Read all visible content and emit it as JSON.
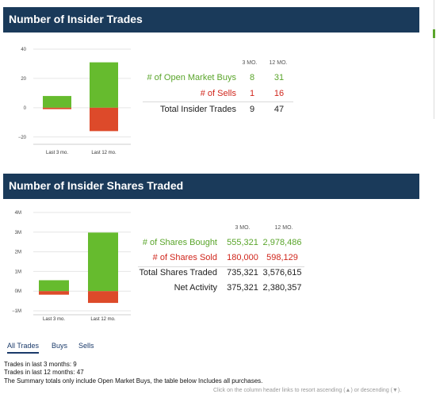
{
  "trades_panel": {
    "title": "Number of Insider Trades",
    "col_3mo": "3 MO.",
    "col_12mo": "12 MO.",
    "rows": [
      {
        "label": "# of Open Market Buys",
        "v3": "8",
        "v12": "31",
        "color": "#5aa52b"
      },
      {
        "label": "# of Sells",
        "v3": "1",
        "v12": "16",
        "color": "#d0261c"
      },
      {
        "label": "Total Insider Trades",
        "v3": "9",
        "v12": "47",
        "color": "#222222"
      }
    ]
  },
  "shares_panel": {
    "title": "Number of Insider Shares Traded",
    "col_3mo": "3 MO.",
    "col_12mo": "12 MO.",
    "rows": [
      {
        "label": "# of Shares Bought",
        "v3": "555,321",
        "v12": "2,978,486",
        "color": "#5aa52b"
      },
      {
        "label": "# of Shares Sold",
        "v3": "180,000",
        "v12": "598,129",
        "color": "#d0261c"
      },
      {
        "label": "Total Shares Traded",
        "v3": "735,321",
        "v12": "3,576,615",
        "color": "#222222"
      },
      {
        "label": "Net Activity",
        "v3": "375,321",
        "v12": "2,380,357",
        "color": "#222222"
      }
    ]
  },
  "chart_data": [
    {
      "type": "bar",
      "categories": [
        "Last 3 mo.",
        "Last 12 mo."
      ],
      "series": [
        {
          "values": [
            8,
            31
          ],
          "color": "#66bb2e"
        },
        {
          "values": [
            -1,
            -16
          ],
          "color": "#dd4a2a"
        }
      ],
      "yticks": [
        40,
        20,
        0,
        -20
      ],
      "ytick_labels": [
        "40",
        "20",
        "0",
        "−20"
      ],
      "ylim": [
        -25,
        40
      ]
    },
    {
      "type": "bar",
      "categories": [
        "Last 3 mo.",
        "Last 12 mo."
      ],
      "series": [
        {
          "values": [
            555321,
            2978486
          ],
          "color": "#66bb2e"
        },
        {
          "values": [
            -180000,
            -598129
          ],
          "color": "#dd4a2a"
        }
      ],
      "yticks": [
        4000000,
        3000000,
        2000000,
        1000000,
        0,
        -1000000
      ],
      "ytick_labels": [
        "4M",
        "3M",
        "2M",
        "1M",
        "0M",
        "−1M"
      ],
      "ylim": [
        -1200000,
        4000000
      ]
    }
  ],
  "tabs": [
    {
      "label": "All Trades",
      "active": true
    },
    {
      "label": "Buys",
      "active": false
    },
    {
      "label": "Sells",
      "active": false
    }
  ],
  "summary": {
    "line1": "Trades in last 3 months: 9",
    "line2": "Trades in last 12 months: 47",
    "line3": "The Summary totals only include Open Market Buys, the table below Includes all purchases."
  },
  "hint": "Click on the column header links to resort ascending (▲) or descending (▼)."
}
